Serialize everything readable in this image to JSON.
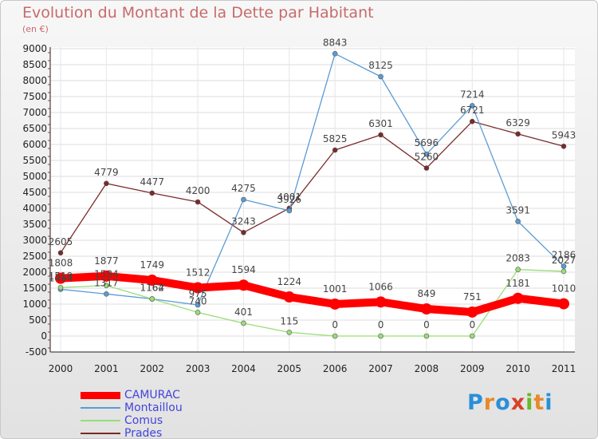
{
  "title": "Evolution du Montant de la Dette par Habitant",
  "subtitle": "(en €)",
  "logo": "Proxiti",
  "chart_data": {
    "type": "line",
    "title": "Evolution du Montant de la Dette par Habitant",
    "subtitle": "(en €)",
    "x": [
      "2000",
      "2001",
      "2002",
      "2003",
      "2004",
      "2005",
      "2006",
      "2007",
      "2008",
      "2009",
      "2010",
      "2011"
    ],
    "yticks": [
      -500,
      0,
      500,
      1000,
      1500,
      2000,
      2500,
      3000,
      3500,
      4000,
      4500,
      5000,
      5500,
      6000,
      6500,
      7000,
      7500,
      8000,
      8500,
      9000
    ],
    "ylim": [
      -500,
      9000
    ],
    "legend_position": "bottom-left",
    "series": [
      {
        "name": "CAMURAC",
        "color": "#ff0000",
        "values": [
          1808,
          1877,
          1749,
          1512,
          1594,
          1224,
          1001,
          1066,
          849,
          751,
          1181,
          1010
        ]
      },
      {
        "name": "Montaillou",
        "color": "#5b9bd5",
        "values": [
          1464,
          1317,
          1162,
          975,
          4275,
          3926,
          8843,
          8125,
          5696,
          7214,
          3591,
          2186
        ]
      },
      {
        "name": "Comus",
        "color": "#99dd77",
        "values": [
          1519,
          1584,
          1164,
          740,
          401,
          115,
          0,
          0,
          0,
          0,
          2083,
          2027
        ]
      },
      {
        "name": "Prades",
        "color": "#7a2a2a",
        "values": [
          2605,
          4779,
          4477,
          4200,
          3243,
          4001,
          5825,
          6301,
          5260,
          6721,
          6329,
          5943
        ]
      }
    ]
  }
}
